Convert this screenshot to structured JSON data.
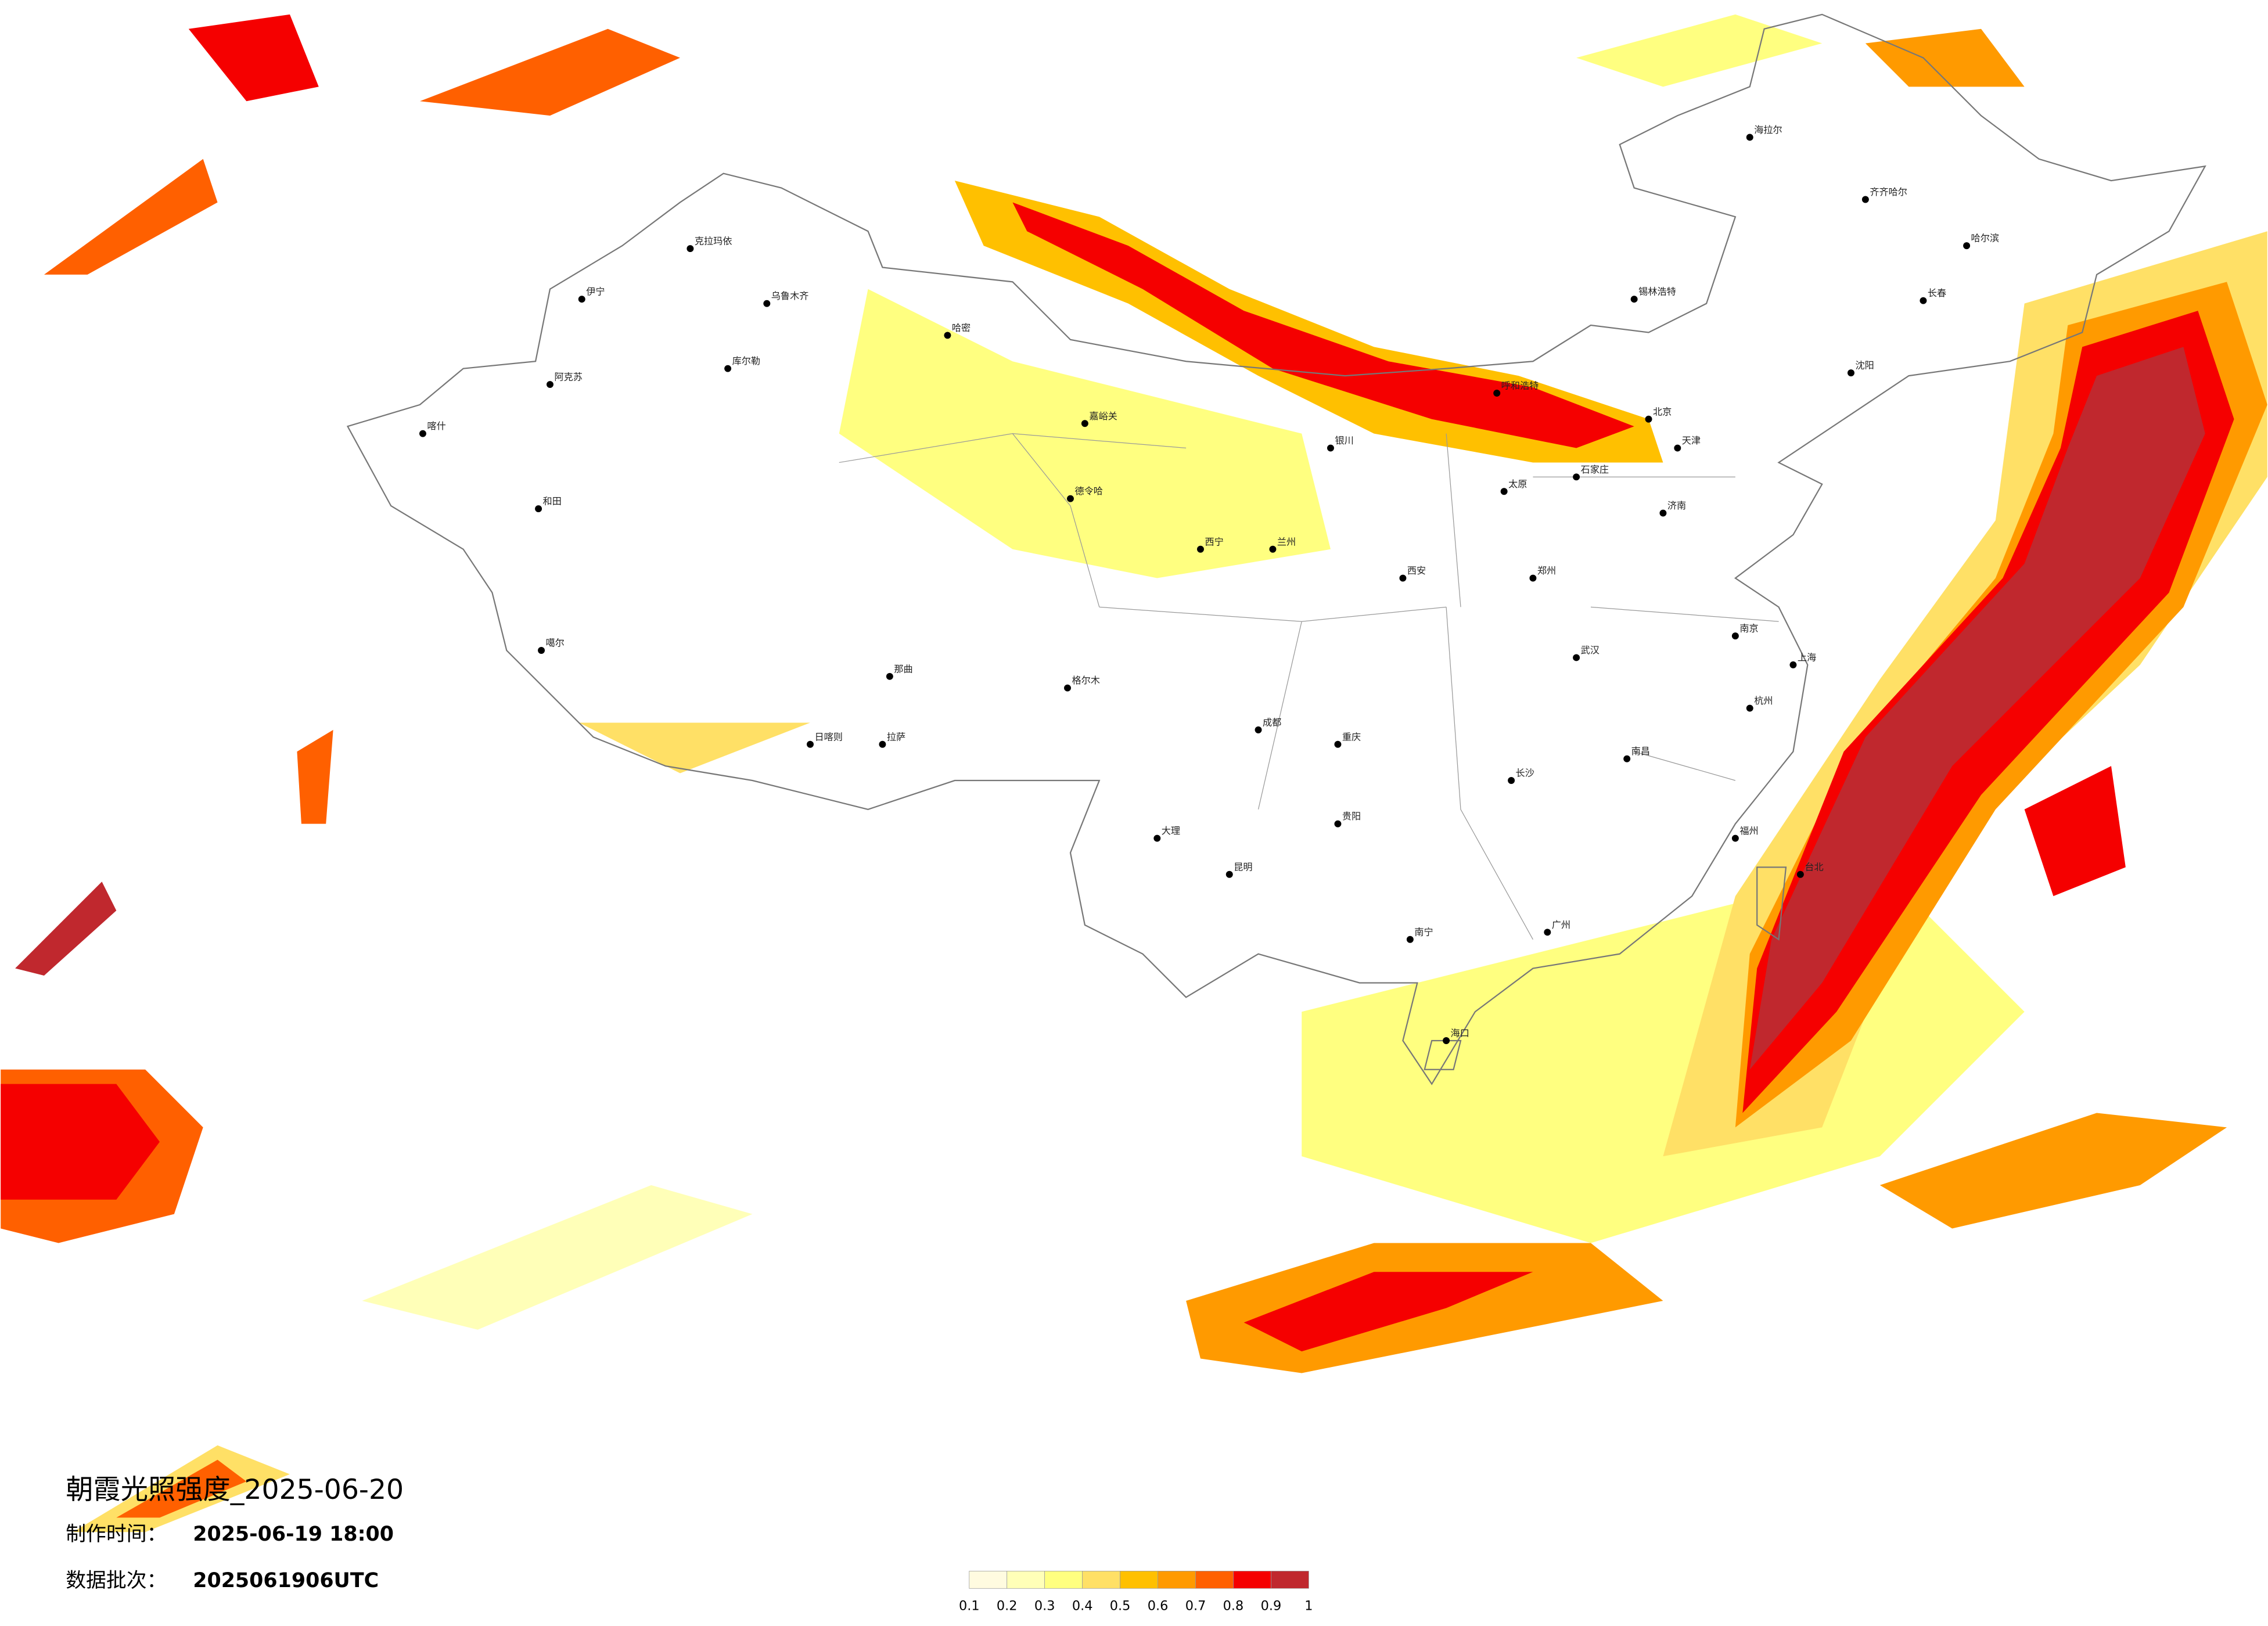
{
  "title": "朝霞光照强度_2025-06-20",
  "meta": [
    {
      "label": "制作时间：",
      "value": "2025-06-19 18:00"
    },
    {
      "label": "数据批次：",
      "value": "2025061906UTC"
    }
  ],
  "legend": {
    "colors": [
      "#fffbe0",
      "#ffffb8",
      "#ffff80",
      "#ffe066",
      "#ffc000",
      "#ff9a00",
      "#ff6000",
      "#f50000",
      "#c0282e"
    ],
    "labels": [
      "0.1",
      "0.2",
      "0.3",
      "0.4",
      "0.5",
      "0.6",
      "0.7",
      "0.8",
      "0.9",
      "1"
    ]
  },
  "cities": [
    "克拉玛依",
    "乌鲁木齐",
    "伊宁",
    "库尔勒",
    "阿克苏",
    "喀什",
    "和田",
    "哈密",
    "嘉峪关",
    "德令哈",
    "格尔木",
    "拉萨",
    "日喀则",
    "那曲",
    "噶尔",
    "西宁",
    "兰州",
    "银川",
    "呼和浩特",
    "锡林浩特",
    "海拉尔",
    "齐齐哈尔",
    "哈尔滨",
    "长春",
    "沈阳",
    "北京",
    "天津",
    "石家庄",
    "太原",
    "济南",
    "郑州",
    "西安",
    "成都",
    "重庆",
    "武汉",
    "长沙",
    "南京",
    "上海",
    "杭州",
    "福州",
    "南昌",
    "贵阳",
    "昆明",
    "南宁",
    "广州",
    "海口",
    "台北",
    "大理"
  ]
}
